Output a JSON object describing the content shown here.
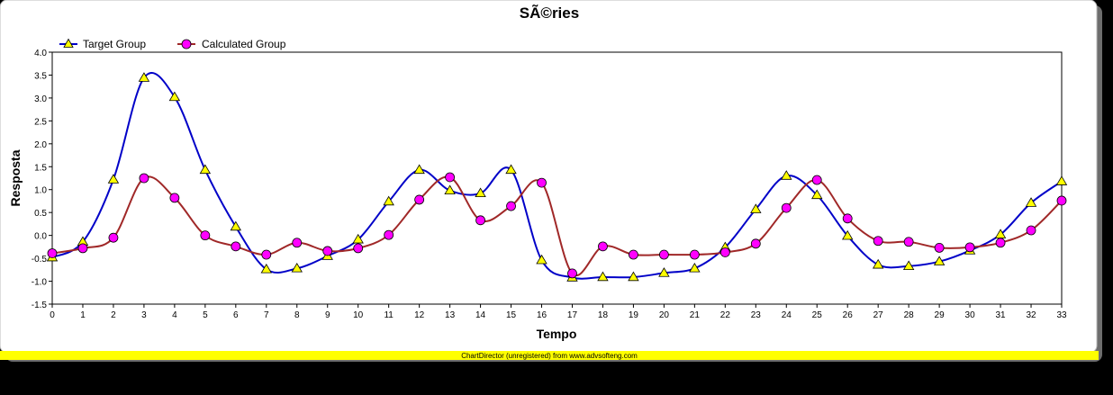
{
  "chart_data": {
    "type": "line",
    "title": "SÃ©ries",
    "xlabel": "Tempo",
    "ylabel": "Resposta",
    "ylim": [
      -1.5,
      4.0
    ],
    "xlim": [
      0,
      33
    ],
    "yticks": [
      "4.0",
      "3.5",
      "3.0",
      "2.5",
      "2.0",
      "1.5",
      "1.0",
      "0.5",
      "0.0",
      "-0.5",
      "-1.0",
      "-1.5"
    ],
    "x": [
      0,
      1,
      2,
      3,
      4,
      5,
      6,
      7,
      8,
      9,
      10,
      11,
      12,
      13,
      14,
      15,
      16,
      17,
      18,
      19,
      20,
      21,
      22,
      23,
      24,
      25,
      26,
      27,
      28,
      29,
      30,
      31,
      32,
      33
    ],
    "grid": false,
    "legend_position": "top-left",
    "series": [
      {
        "name": "Target Group",
        "color": "#0000c8",
        "marker": "triangle",
        "marker_color": "#ffff00",
        "values": [
          -0.48,
          -0.14,
          1.22,
          3.44,
          3.02,
          1.43,
          0.19,
          -0.74,
          -0.72,
          -0.45,
          -0.09,
          0.74,
          1.43,
          0.98,
          0.92,
          1.43,
          -0.54,
          -0.92,
          -0.91,
          -0.91,
          -0.82,
          -0.72,
          -0.26,
          0.57,
          1.3,
          0.88,
          -0.01,
          -0.64,
          -0.67,
          -0.57,
          -0.33,
          0.02,
          0.71,
          1.18
        ]
      },
      {
        "name": "Calculated Group",
        "color": "#a02828",
        "marker": "circle",
        "marker_color": "#ff00ff",
        "values": [
          -0.39,
          -0.28,
          -0.05,
          1.25,
          0.82,
          0.0,
          -0.24,
          -0.42,
          -0.16,
          -0.34,
          -0.28,
          0.01,
          0.78,
          1.27,
          0.33,
          0.64,
          1.15,
          -0.83,
          -0.24,
          -0.42,
          -0.42,
          -0.42,
          -0.37,
          -0.18,
          0.6,
          1.21,
          0.37,
          -0.12,
          -0.14,
          -0.27,
          -0.26,
          -0.16,
          0.11,
          0.76
        ]
      }
    ]
  },
  "footer": {
    "credit": "ChartDirector (unregistered) from www.advsofteng.com",
    "band_color": "#ffff00"
  }
}
